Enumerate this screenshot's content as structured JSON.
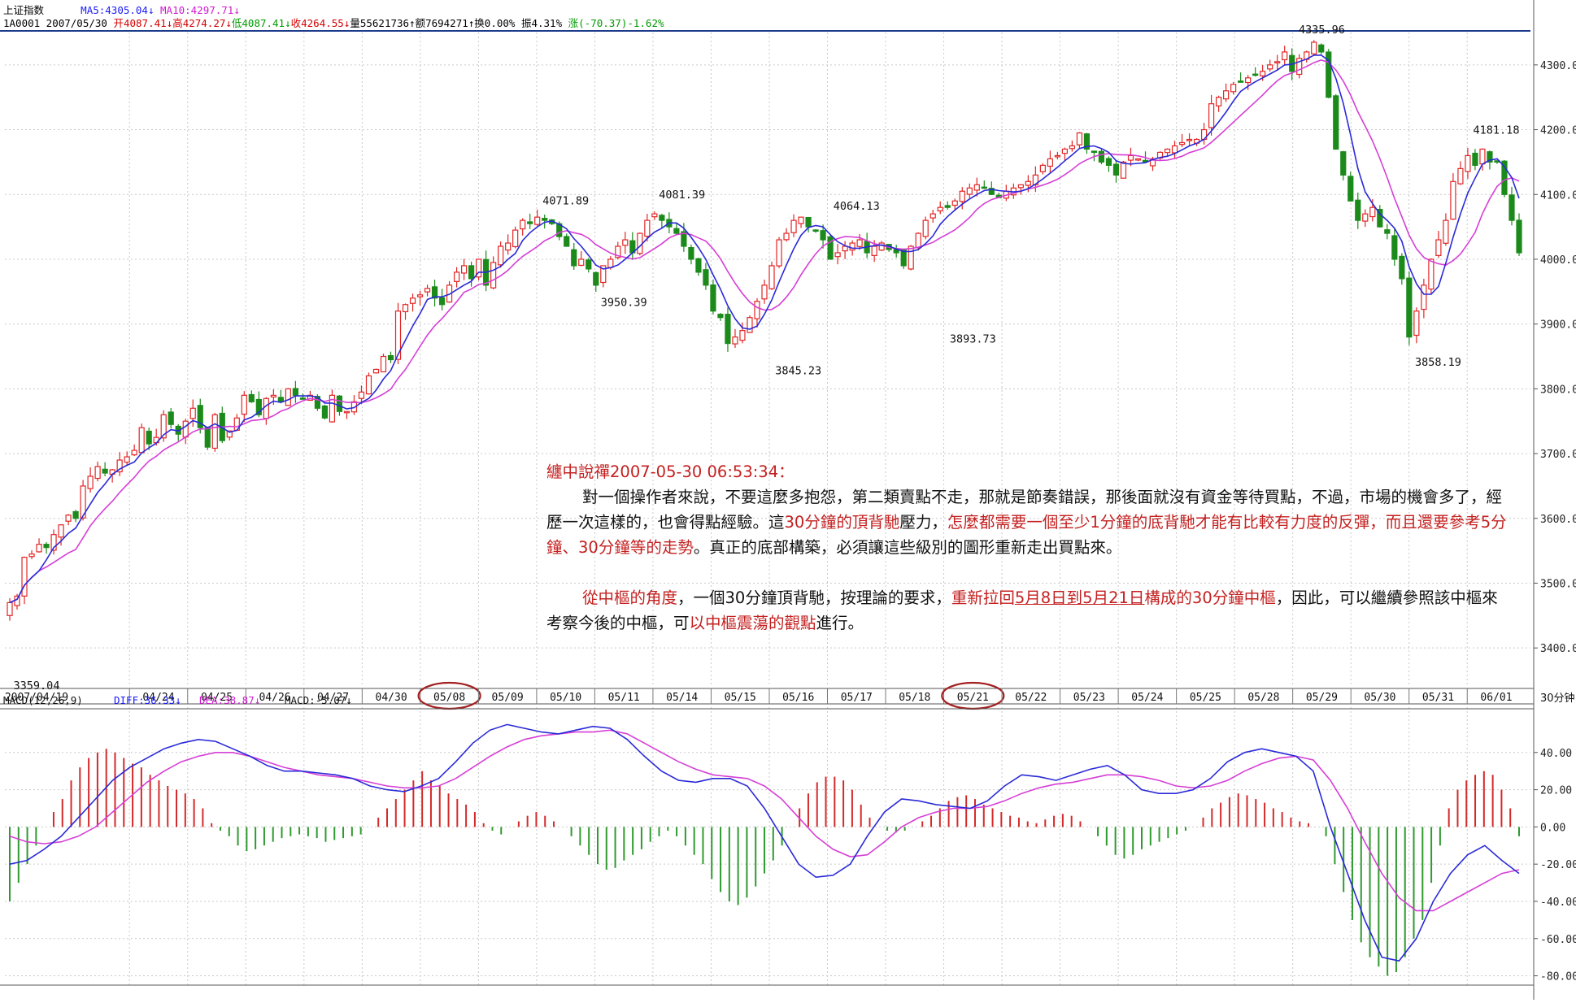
{
  "header": {
    "index_name": "上证指数",
    "ma5_label": "MA5:4305.04↓",
    "ma10_label": "MA10:4297.71↓",
    "code_date": "1A0001 2007/05/30",
    "open": "开4087.41↓",
    "high": "高4274.27↓",
    "low": "低4087.41↓",
    "close": "收4264.55↓",
    "volume": "量55621736↑",
    "amount": "额7694271↑",
    "turnover": "换0.00%",
    "amplitude": "振4.31%",
    "change": "涨(-70.37)-1.62%"
  },
  "annotation": {
    "heading": "纏中說禪2007-05-30 06:53:34：",
    "p1_a": "對一個操作者來說，不要這麼多抱怨，第二類賣點不走，那就是節奏錯誤，那後面就沒有資金等待買點，不過，市場的機會多了，經歷一次這樣的，也會得點經驗。這",
    "p1_b": "30分鐘的頂背馳",
    "p1_c": "壓力，",
    "p1_d": "怎麼都需要一個至少1分鐘的底背馳才能有比較有力度的反彈，而且還要參考5分鐘、30分鐘等的走勢",
    "p1_e": "。真正的底部構築，必須讓這些級別的圖形重新走出買點來。",
    "p2_a": "從中樞的角度",
    "p2_b": "，一個30分鐘頂背馳，按理論的要求，",
    "p2_c": "重新拉回",
    "p2_d": "5月8日到5月21日",
    "p2_e": "構成的30分鐘中樞",
    "p2_f": "，因此，可以繼續參照該中樞來考察今後的中樞，可",
    "p2_g": "以中樞震蕩的觀點",
    "p2_h": "進行。"
  },
  "chart_data": [
    {
      "type": "candlestick",
      "title": "上证指数",
      "period": "30分钟",
      "ylim": [
        3340,
        4350
      ],
      "y_ticks": [
        "4300.0",
        "4200.0",
        "4100.0",
        "4000.0",
        "3900.0",
        "3800.0",
        "3700.0",
        "3600.0",
        "3500.0",
        "3400.0"
      ],
      "x_labels": [
        "2007/04/19",
        "04/24",
        "04/25",
        "04/26",
        "04/27",
        "04/30",
        "05/08",
        "05/09",
        "05/10",
        "05/11",
        "05/14",
        "05/15",
        "05/16",
        "05/17",
        "05/18",
        "05/21",
        "05/22",
        "05/23",
        "05/24",
        "05/25",
        "05/28",
        "05/29",
        "05/30",
        "05/31",
        "06/01"
      ],
      "circled_dates": [
        "05/08",
        "05/21"
      ],
      "annotations": [
        {
          "text": "3359.04",
          "date": "2007/04/19",
          "value": 3359.04
        },
        {
          "text": "4071.89",
          "date": "05/10",
          "value": 4071.89
        },
        {
          "text": "3950.39",
          "date": "05/11",
          "value": 3950.39
        },
        {
          "text": "4081.39",
          "date": "05/14",
          "value": 4081.39
        },
        {
          "text": "3845.23",
          "date": "05/16",
          "value": 3845.23
        },
        {
          "text": "4064.13",
          "date": "05/17",
          "value": 4064.13
        },
        {
          "text": "3893.73",
          "date": "05/21",
          "value": 3893.73
        },
        {
          "text": "4335.96",
          "date": "05/29",
          "value": 4335.96
        },
        {
          "text": "4181.18",
          "date": "06/01",
          "value": 4181.18
        },
        {
          "text": "3858.19",
          "date": "05/31",
          "value": 3858.19
        }
      ],
      "close_series": [
        3470,
        3480,
        3540,
        3545,
        3560,
        3555,
        3575,
        3590,
        3605,
        3600,
        3650,
        3665,
        3680,
        3670,
        3675,
        3690,
        3695,
        3705,
        3740,
        3715,
        3725,
        3760,
        3745,
        3730,
        3750,
        3770,
        3740,
        3710,
        3760,
        3720,
        3735,
        3755,
        3790,
        3780,
        3760,
        3785,
        3790,
        3780,
        3800,
        3790,
        3785,
        3790,
        3770,
        3755,
        3790,
        3765,
        3765,
        3780,
        3795,
        3820,
        3830,
        3850,
        3845,
        3920,
        3930,
        3940,
        3945,
        3955,
        3940,
        3930,
        3960,
        3980,
        3990,
        3970,
        4000,
        3960,
        3995,
        4020,
        4025,
        4045,
        4060,
        4055,
        4065,
        4060,
        4055,
        4035,
        4020,
        3990,
        4000,
        3985,
        3960,
        3990,
        4000,
        4020,
        4030,
        4010,
        4040,
        4060,
        4070,
        4060,
        4050,
        4040,
        4020,
        4000,
        3980,
        3960,
        3920,
        3910,
        3870,
        3880,
        3890,
        3910,
        3935,
        3960,
        3990,
        4030,
        4040,
        4060,
        4065,
        4050,
        4045,
        4030,
        4000,
        4010,
        4020,
        4025,
        4030,
        4010,
        4020,
        4025,
        4015,
        4010,
        3990,
        4020,
        4040,
        4060,
        4070,
        4080,
        4080,
        4090,
        4105,
        4110,
        4115,
        4110,
        4100,
        4095,
        4105,
        4110,
        4115,
        4120,
        4130,
        4145,
        4155,
        4160,
        4170,
        4175,
        4195,
        4170,
        4165,
        4150,
        4145,
        4130,
        4150,
        4160,
        4155,
        4150,
        4155,
        4165,
        4170,
        4175,
        4180,
        4185,
        4185,
        4200,
        4240,
        4250,
        4260,
        4270,
        4275,
        4280,
        4285,
        4290,
        4300,
        4305,
        4320,
        4290,
        4310,
        4320,
        4335,
        4320,
        4250,
        4170,
        4130,
        4090,
        4060,
        4070,
        4080,
        4050,
        4040,
        4000,
        3970,
        3880,
        3920,
        3960,
        4000,
        4030,
        4060,
        4120,
        4140,
        4160,
        4145,
        4170,
        4150,
        4150,
        4100,
        4060,
        4010
      ],
      "ma_labels": [
        "MA5:4305.04",
        "MA10:4297.71"
      ]
    },
    {
      "type": "line",
      "title": "MACD(12,26,9)",
      "series_labels": [
        "DIFF:36.33",
        "DEA:38.87",
        "MACD:-5.07"
      ],
      "ylim": [
        -85,
        60
      ],
      "y_ticks": [
        "40.00",
        "20.00",
        "0.00",
        "-20.00",
        "-40.00",
        "-60.00",
        "-80.00"
      ],
      "macd_values": [
        -40,
        -30,
        -20,
        -10,
        0,
        8,
        15,
        25,
        32,
        37,
        40,
        42,
        40,
        37,
        34,
        32,
        28,
        25,
        22,
        20,
        18,
        15,
        10,
        2,
        -2,
        -5,
        -10,
        -13,
        -12,
        -10,
        -8,
        -6,
        -5,
        -4,
        -5,
        -6,
        -8,
        -7,
        -6,
        -5,
        -4,
        0,
        5,
        10,
        15,
        20,
        25,
        30,
        25,
        22,
        18,
        15,
        12,
        8,
        2,
        -2,
        -4,
        0,
        3,
        6,
        8,
        6,
        3,
        0,
        -5,
        -10,
        -15,
        -20,
        -23,
        -22,
        -18,
        -15,
        -12,
        -8,
        -5,
        -2,
        -5,
        -10,
        -15,
        -20,
        -28,
        -35,
        -40,
        -42,
        -38,
        -32,
        -25,
        -18,
        -10,
        0,
        10,
        18,
        24,
        27,
        27,
        25,
        20,
        12,
        5,
        0,
        -2,
        -3,
        -2,
        0,
        3,
        6,
        10,
        14,
        16,
        17,
        15,
        12,
        10,
        8,
        6,
        5,
        3,
        2,
        4,
        6,
        7,
        6,
        3,
        0,
        -5,
        -10,
        -15,
        -17,
        -15,
        -12,
        -10,
        -8,
        -6,
        -4,
        -2,
        0,
        5,
        10,
        13,
        16,
        18,
        17,
        15,
        13,
        10,
        8,
        5,
        3,
        2,
        0,
        -5,
        -20,
        -35,
        -50,
        -62,
        -70,
        -75,
        -80,
        -78,
        -70,
        -60,
        -50,
        -30,
        -10,
        10,
        20,
        25,
        28,
        30,
        28,
        20,
        10,
        -5
      ],
      "diff_values": [
        -20,
        -18,
        -12,
        -5,
        5,
        15,
        25,
        32,
        37,
        42,
        45,
        47,
        46,
        42,
        38,
        33,
        30,
        30,
        29,
        28,
        26,
        22,
        20,
        19,
        22,
        26,
        35,
        45,
        52,
        55,
        53,
        51,
        50,
        52,
        54,
        53,
        47,
        38,
        30,
        25,
        24,
        26,
        26,
        22,
        10,
        -5,
        -20,
        -27,
        -26,
        -20,
        -5,
        8,
        15,
        14,
        12,
        11,
        10,
        14,
        22,
        28,
        27,
        25,
        28,
        31,
        33,
        28,
        20,
        18,
        18,
        20,
        26,
        35,
        40,
        42,
        40,
        38,
        30,
        0,
        -25,
        -50,
        -70,
        -72,
        -60,
        -40,
        -25,
        -15,
        -10,
        -18,
        -25
      ],
      "dea_values": [
        -5,
        -8,
        -9,
        -8,
        -5,
        0,
        8,
        16,
        24,
        30,
        35,
        38,
        40,
        40,
        38,
        35,
        32,
        30,
        28,
        27,
        26,
        24,
        22,
        21,
        21,
        22,
        26,
        32,
        38,
        43,
        47,
        49,
        50,
        51,
        51,
        52,
        50,
        45,
        40,
        35,
        31,
        28,
        27,
        26,
        22,
        15,
        5,
        -5,
        -12,
        -16,
        -15,
        -8,
        0,
        5,
        8,
        10,
        10,
        11,
        14,
        18,
        21,
        23,
        24,
        26,
        28,
        28,
        27,
        25,
        22,
        21,
        22,
        25,
        30,
        34,
        37,
        38,
        36,
        25,
        10,
        -8,
        -25,
        -38,
        -45,
        -45,
        -40,
        -35,
        -30,
        -25,
        -23
      ]
    }
  ]
}
